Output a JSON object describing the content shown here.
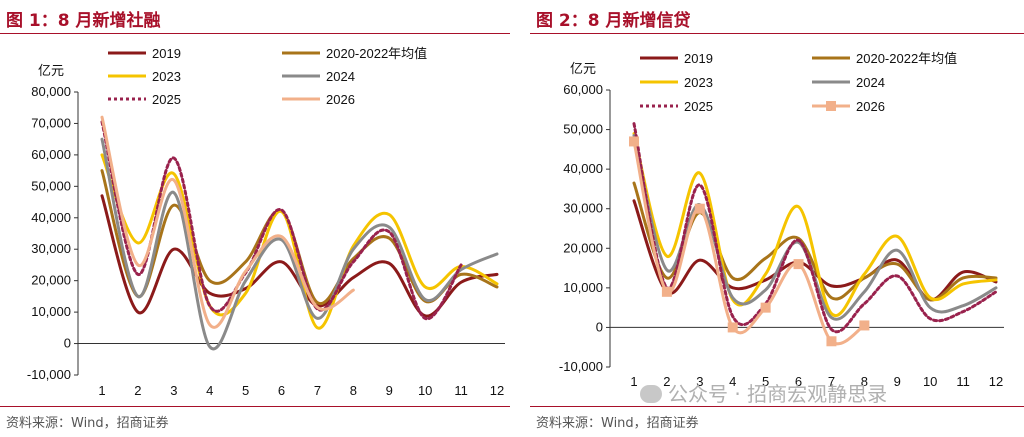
{
  "panels": [
    {
      "title": "图 1：8 月新增社融",
      "unit": "亿元",
      "source": "资料来源：Wind，招商证券",
      "chart_data": {
        "type": "line",
        "x": [
          1,
          2,
          3,
          4,
          5,
          6,
          7,
          8,
          9,
          10,
          11,
          12
        ],
        "ylim": [
          -10000,
          80000
        ],
        "yticks": [
          -10000,
          0,
          10000,
          20000,
          30000,
          40000,
          50000,
          60000,
          70000,
          80000
        ],
        "legend_position": "top",
        "series": [
          {
            "name": "2019",
            "color": "#8b1a1a",
            "dash": "",
            "marker": "",
            "values": [
              47000,
              10000,
              30000,
              16000,
              17500,
              26000,
              12000,
              21000,
              25500,
              8800,
              19500,
              22000
            ]
          },
          {
            "name": "2020-2022年均值",
            "color": "#a8741a",
            "dash": "",
            "marker": "",
            "values": [
              55000,
              15000,
              44000,
              20000,
              26000,
              42000,
              13000,
              27000,
              33500,
              13500,
              22000,
              18000
            ]
          },
          {
            "name": "2023",
            "color": "#f5c400",
            "dash": "",
            "marker": "",
            "values": [
              60000,
              32000,
              54000,
              12000,
              16000,
              42000,
              5000,
              31000,
              41000,
              18000,
              24500,
              19000
            ]
          },
          {
            "name": "2024",
            "color": "#8a8a8a",
            "dash": "",
            "marker": "",
            "values": [
              65000,
              15000,
              48000,
              -1000,
              20000,
              33000,
              8000,
              30000,
              37000,
              14000,
              23500,
              28500
            ]
          },
          {
            "name": "2025",
            "color": "#99224d",
            "dash": "3,3",
            "marker": "",
            "values": [
              70500,
              22000,
              59000,
              12000,
              22500,
              42500,
              11000,
              26000,
              35500,
              8000,
              25000,
              null
            ]
          },
          {
            "name": "2026",
            "color": "#f2b08a",
            "dash": "",
            "marker": "",
            "values": [
              72000,
              25000,
              52000,
              6000,
              23000,
              34000,
              11500,
              17000,
              null,
              null,
              null,
              null
            ]
          }
        ]
      }
    },
    {
      "title": "图 2：8 月新增信贷",
      "unit": "亿元",
      "source": "资料来源：Wind，招商证券",
      "chart_data": {
        "type": "line",
        "x": [
          1,
          2,
          3,
          4,
          5,
          6,
          7,
          8,
          9,
          10,
          11,
          12
        ],
        "ylim": [
          -10000,
          60000
        ],
        "yticks": [
          -10000,
          0,
          10000,
          20000,
          30000,
          40000,
          50000,
          60000
        ],
        "legend_position": "top",
        "series": [
          {
            "name": "2019",
            "color": "#8b1a1a",
            "dash": "",
            "marker": "",
            "values": [
              32000,
              9000,
              17000,
              10000,
              12000,
              16500,
              10500,
              12500,
              17000,
              7000,
              14000,
              11500
            ]
          },
          {
            "name": "2020-2022年均值",
            "color": "#a8741a",
            "dash": "",
            "marker": "",
            "values": [
              36500,
              12500,
              29000,
              12500,
              17500,
              22500,
              7500,
              12500,
              16000,
              7000,
              12500,
              12500
            ]
          },
          {
            "name": "2023",
            "color": "#f5c400",
            "dash": "",
            "marker": "",
            "values": [
              49000,
              18000,
              39000,
              7000,
              13500,
              30500,
              3500,
              13500,
              23000,
              7500,
              11000,
              12000
            ]
          },
          {
            "name": "2024",
            "color": "#8a8a8a",
            "dash": "",
            "marker": "",
            "values": [
              48500,
              14500,
              31000,
              7500,
              9500,
              21500,
              2500,
              9000,
              19500,
              5000,
              5500,
              10000
            ]
          },
          {
            "name": "2025",
            "color": "#99224d",
            "dash": "3,3",
            "marker": "",
            "values": [
              51500,
              10000,
              36000,
              2800,
              6000,
              22000,
              -500,
              6000,
              13000,
              2200,
              4000,
              9000
            ]
          },
          {
            "name": "2026",
            "color": "#f2b08a",
            "dash": "",
            "marker": "square",
            "values": [
              47000,
              9000,
              30000,
              0,
              5000,
              16000,
              -3500,
              500,
              null,
              null,
              null,
              null
            ]
          }
        ]
      }
    }
  ],
  "watermark": "公众号 · 招商宏观静思录"
}
